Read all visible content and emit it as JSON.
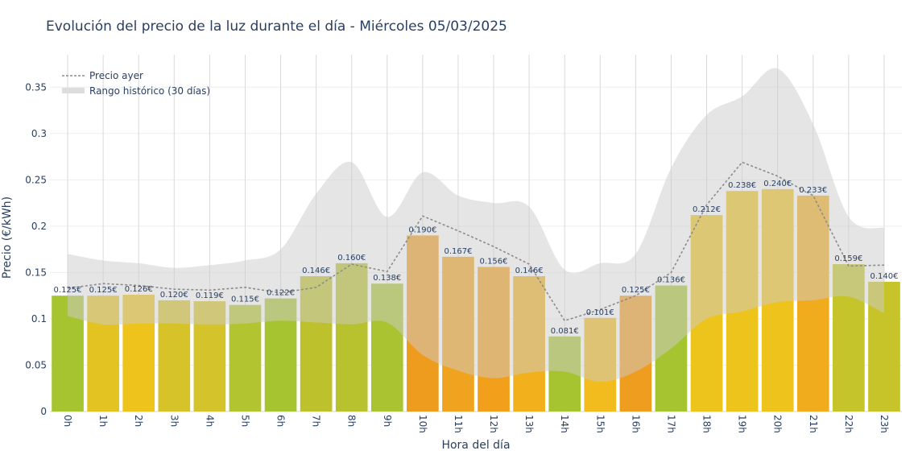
{
  "chart_data": {
    "type": "bar",
    "title": "Evolución del precio de la luz durante el día - Miércoles 05/03/2025",
    "xlabel": "Hora del día",
    "ylabel": "Precio (€/kWh)",
    "categories": [
      "0h",
      "1h",
      "2h",
      "3h",
      "4h",
      "5h",
      "6h",
      "7h",
      "8h",
      "9h",
      "10h",
      "11h",
      "12h",
      "13h",
      "14h",
      "15h",
      "16h",
      "17h",
      "18h",
      "19h",
      "20h",
      "21h",
      "22h",
      "23h"
    ],
    "ylim": [
      0,
      0.385
    ],
    "yticks": [
      0,
      0.05,
      0.1,
      0.15,
      0.2,
      0.25,
      0.3,
      0.35
    ],
    "ytick_labels": [
      "0",
      "0.05",
      "0.1",
      "0.15",
      "0.2",
      "0.25",
      "0.3",
      "0.35"
    ],
    "grid": true,
    "legend_position": "top-left",
    "series": [
      {
        "kind": "bar",
        "values": [
          0.125,
          0.125,
          0.126,
          0.12,
          0.119,
          0.115,
          0.122,
          0.146,
          0.16,
          0.138,
          0.19,
          0.167,
          0.156,
          0.146,
          0.081,
          0.101,
          0.125,
          0.136,
          0.212,
          0.238,
          0.24,
          0.233,
          0.159,
          0.14
        ],
        "labels": [
          "0.125€",
          "0.125€",
          "0.126€",
          "0.120€",
          "0.119€",
          "0.115€",
          "0.122€",
          "0.146€",
          "0.160€",
          "0.138€",
          "0.190€",
          "0.167€",
          "0.156€",
          "0.146€",
          "0.081€",
          "0.101€",
          "0.125€",
          "0.136€",
          "0.212€",
          "0.238€",
          "0.240€",
          "0.233€",
          "0.159€",
          "0.140€"
        ],
        "colors": [
          "#a6c430",
          "#e3c321",
          "#edc31c",
          "#d6c32a",
          "#d4c32a",
          "#b2c42f",
          "#a6c430",
          "#bdc12c",
          "#b8c12e",
          "#a9c430",
          "#ee9c1e",
          "#f0a31e",
          "#f29f1c",
          "#f1b01c",
          "#a6c430",
          "#f2bb1e",
          "#ef9d1f",
          "#a6c430",
          "#ecc41c",
          "#ecc41c",
          "#eec31c",
          "#f0ac1c",
          "#c5c42a",
          "#c6c429"
        ]
      },
      {
        "name": "Precio ayer",
        "kind": "line",
        "values": [
          0.133,
          0.138,
          0.136,
          0.132,
          0.131,
          0.134,
          0.128,
          0.134,
          0.159,
          0.151,
          0.211,
          0.195,
          0.178,
          0.159,
          0.098,
          0.11,
          0.125,
          0.15,
          0.223,
          0.269,
          0.254,
          0.233,
          0.157,
          0.158
        ],
        "color": "#8c8c8c"
      },
      {
        "name": "Rango histórico (30 días)",
        "kind": "band",
        "upper": [
          0.17,
          0.163,
          0.16,
          0.155,
          0.158,
          0.163,
          0.175,
          0.235,
          0.269,
          0.21,
          0.258,
          0.233,
          0.225,
          0.221,
          0.153,
          0.16,
          0.17,
          0.263,
          0.32,
          0.34,
          0.37,
          0.31,
          0.21,
          0.198
        ],
        "lower": [
          0.103,
          0.094,
          0.095,
          0.095,
          0.094,
          0.095,
          0.098,
          0.096,
          0.094,
          0.096,
          0.061,
          0.044,
          0.036,
          0.042,
          0.043,
          0.032,
          0.043,
          0.068,
          0.1,
          0.108,
          0.118,
          0.12,
          0.124,
          0.106
        ],
        "color": "#cccccc"
      }
    ]
  }
}
